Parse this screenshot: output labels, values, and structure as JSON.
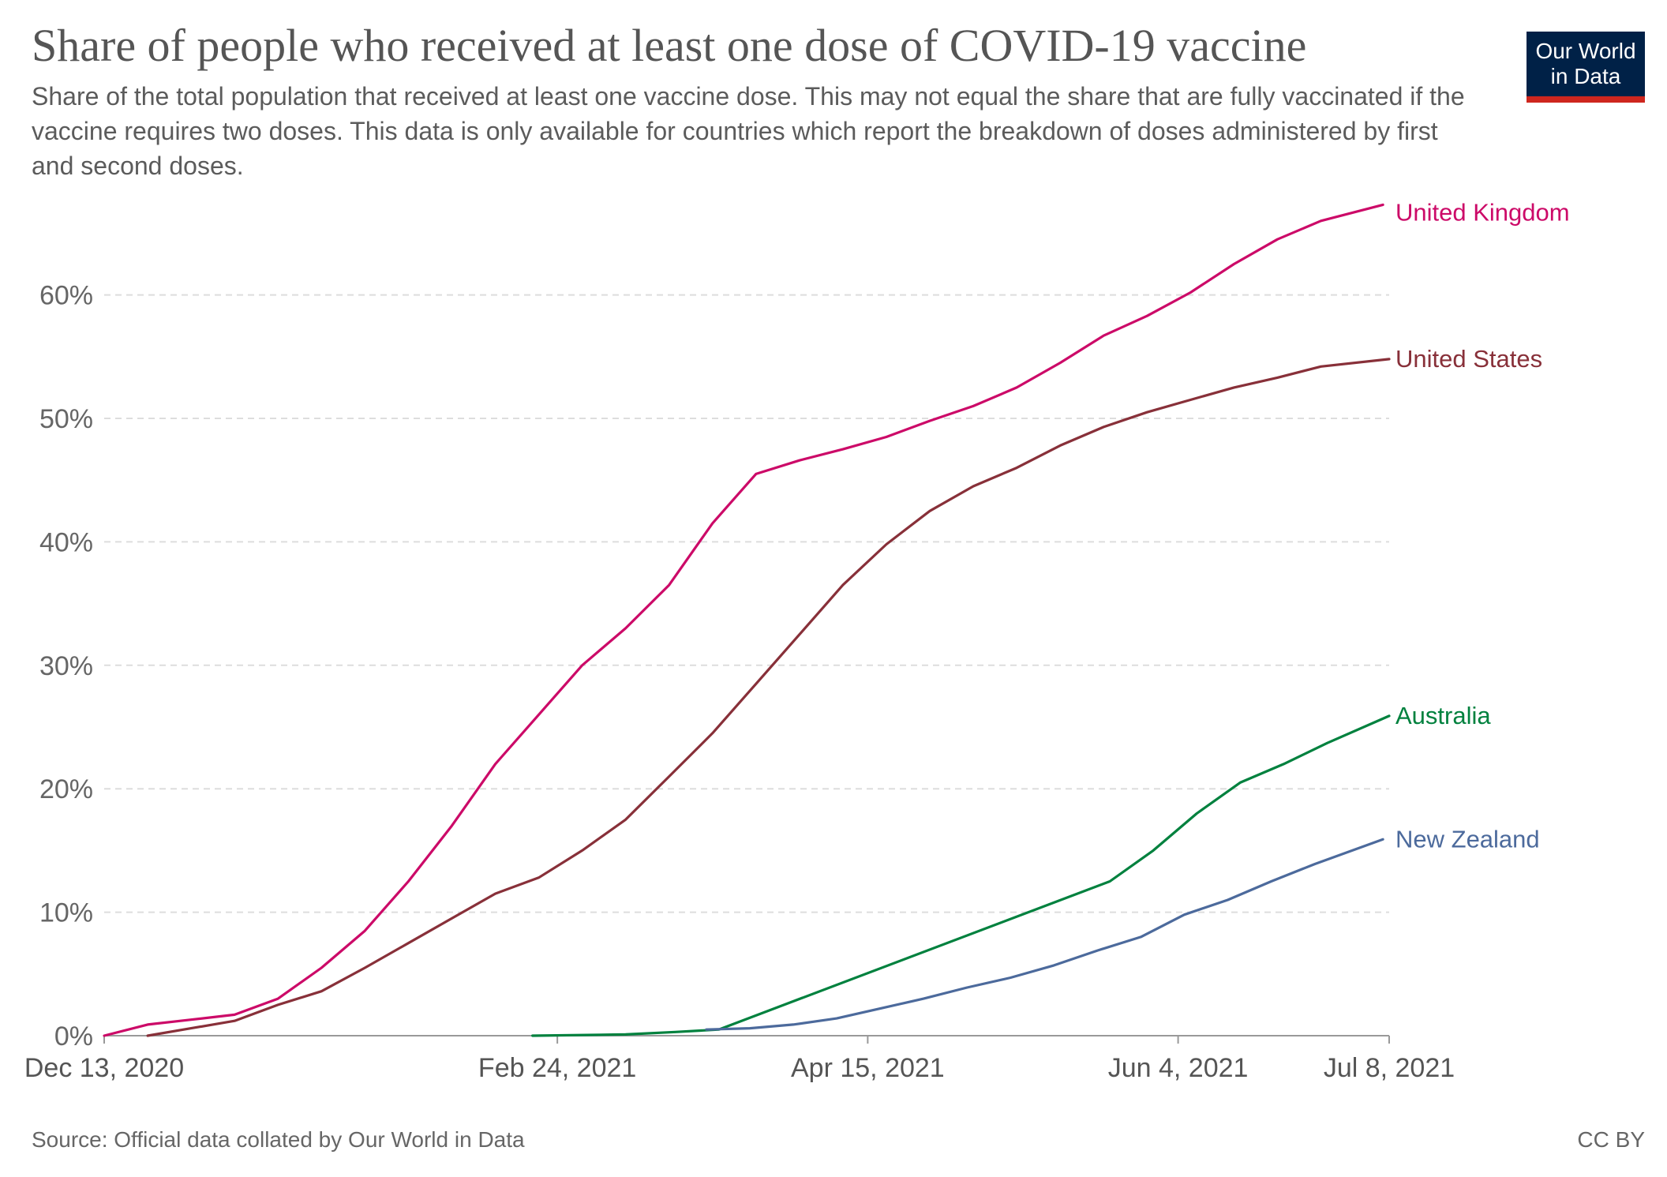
{
  "title": "Share of people who received at least one dose of COVID-19 vaccine",
  "subtitle": "Share of the total population that received at least one vaccine dose. This may not equal the share that are fully vaccinated if the vaccine requires two doses. This data is only available for countries which report the breakdown of doses administered by first and second doses.",
  "logo": {
    "line1": "Our World",
    "line2": "in Data",
    "background": "#002147",
    "accent": "#ce261e"
  },
  "footer": {
    "source": "Source: Official data collated by Our World in Data",
    "license": "CC BY"
  },
  "chart_data": {
    "type": "line",
    "title": "Share of people who received at least one dose of COVID-19 vaccine",
    "xlabel": "",
    "ylabel": "",
    "x_range": [
      "2020-12-13",
      "2021-07-08"
    ],
    "x_ticks": [
      {
        "date": "2020-12-13",
        "label": "Dec 13, 2020"
      },
      {
        "date": "2021-02-24",
        "label": "Feb 24, 2021"
      },
      {
        "date": "2021-04-15",
        "label": "Apr 15, 2021"
      },
      {
        "date": "2021-06-04",
        "label": "Jun 4, 2021"
      },
      {
        "date": "2021-07-08",
        "label": "Jul 8, 2021"
      }
    ],
    "ylim": [
      0,
      70
    ],
    "y_ticks": [
      0,
      10,
      20,
      30,
      40,
      50,
      60
    ],
    "y_tick_labels": [
      "0%",
      "10%",
      "20%",
      "30%",
      "40%",
      "50%",
      "60%"
    ],
    "grid": "horizontal dashed",
    "legend": "direct labels at line ends (right)",
    "series": [
      {
        "name": "United Kingdom",
        "color": "#cc0a68",
        "points": [
          [
            "2020-12-13",
            0
          ],
          [
            "2020-12-20",
            0.9
          ],
          [
            "2020-12-27",
            1.3
          ],
          [
            "2021-01-03",
            1.7
          ],
          [
            "2021-01-10",
            3.0
          ],
          [
            "2021-01-17",
            5.5
          ],
          [
            "2021-01-24",
            8.5
          ],
          [
            "2021-01-31",
            12.5
          ],
          [
            "2021-02-07",
            17.0
          ],
          [
            "2021-02-14",
            22.0
          ],
          [
            "2021-02-21",
            26.0
          ],
          [
            "2021-02-28",
            30.0
          ],
          [
            "2021-03-07",
            33.0
          ],
          [
            "2021-03-14",
            36.5
          ],
          [
            "2021-03-21",
            41.5
          ],
          [
            "2021-03-28",
            45.5
          ],
          [
            "2021-04-04",
            46.6
          ],
          [
            "2021-04-11",
            47.5
          ],
          [
            "2021-04-18",
            48.5
          ],
          [
            "2021-04-25",
            49.8
          ],
          [
            "2021-05-02",
            51.0
          ],
          [
            "2021-05-09",
            52.5
          ],
          [
            "2021-05-16",
            54.5
          ],
          [
            "2021-05-23",
            56.7
          ],
          [
            "2021-05-30",
            58.3
          ],
          [
            "2021-06-06",
            60.2
          ],
          [
            "2021-06-13",
            62.5
          ],
          [
            "2021-06-20",
            64.5
          ],
          [
            "2021-06-27",
            66.0
          ],
          [
            "2021-07-07",
            67.3
          ]
        ]
      },
      {
        "name": "United States",
        "color": "#883039",
        "points": [
          [
            "2020-12-20",
            0
          ],
          [
            "2020-12-27",
            0.6
          ],
          [
            "2021-01-03",
            1.2
          ],
          [
            "2021-01-10",
            2.5
          ],
          [
            "2021-01-17",
            3.6
          ],
          [
            "2021-01-24",
            5.5
          ],
          [
            "2021-01-31",
            7.5
          ],
          [
            "2021-02-07",
            9.5
          ],
          [
            "2021-02-14",
            11.5
          ],
          [
            "2021-02-21",
            12.8
          ],
          [
            "2021-02-28",
            15.0
          ],
          [
            "2021-03-07",
            17.5
          ],
          [
            "2021-03-14",
            21.0
          ],
          [
            "2021-03-21",
            24.5
          ],
          [
            "2021-03-28",
            28.5
          ],
          [
            "2021-04-04",
            32.5
          ],
          [
            "2021-04-11",
            36.5
          ],
          [
            "2021-04-18",
            39.8
          ],
          [
            "2021-04-25",
            42.5
          ],
          [
            "2021-05-02",
            44.5
          ],
          [
            "2021-05-09",
            46.0
          ],
          [
            "2021-05-16",
            47.8
          ],
          [
            "2021-05-23",
            49.3
          ],
          [
            "2021-05-30",
            50.5
          ],
          [
            "2021-06-06",
            51.5
          ],
          [
            "2021-06-13",
            52.5
          ],
          [
            "2021-06-20",
            53.3
          ],
          [
            "2021-06-27",
            54.2
          ],
          [
            "2021-07-08",
            54.8
          ]
        ]
      },
      {
        "name": "Australia",
        "color": "#00813e",
        "points": [
          [
            "2021-02-20",
            0
          ],
          [
            "2021-03-07",
            0.1
          ],
          [
            "2021-03-15",
            0.3
          ],
          [
            "2021-03-22",
            0.5
          ],
          [
            "2021-05-24",
            12.5
          ],
          [
            "2021-05-31",
            15.0
          ],
          [
            "2021-06-07",
            18.0
          ],
          [
            "2021-06-14",
            20.5
          ],
          [
            "2021-06-21",
            22.0
          ],
          [
            "2021-06-28",
            23.7
          ],
          [
            "2021-07-08",
            25.9
          ]
        ]
      },
      {
        "name": "New Zealand",
        "color": "#4c6a9c",
        "points": [
          [
            "2021-03-20",
            0.5
          ],
          [
            "2021-03-27",
            0.6
          ],
          [
            "2021-04-03",
            0.9
          ],
          [
            "2021-04-10",
            1.4
          ],
          [
            "2021-04-17",
            2.2
          ],
          [
            "2021-04-24",
            3.0
          ],
          [
            "2021-05-01",
            3.9
          ],
          [
            "2021-05-08",
            4.7
          ],
          [
            "2021-05-15",
            5.7
          ],
          [
            "2021-05-22",
            6.9
          ],
          [
            "2021-05-29",
            8.0
          ],
          [
            "2021-06-05",
            9.8
          ],
          [
            "2021-06-12",
            11.0
          ],
          [
            "2021-06-19",
            12.5
          ],
          [
            "2021-06-26",
            13.9
          ],
          [
            "2021-07-07",
            15.9
          ]
        ]
      }
    ]
  }
}
